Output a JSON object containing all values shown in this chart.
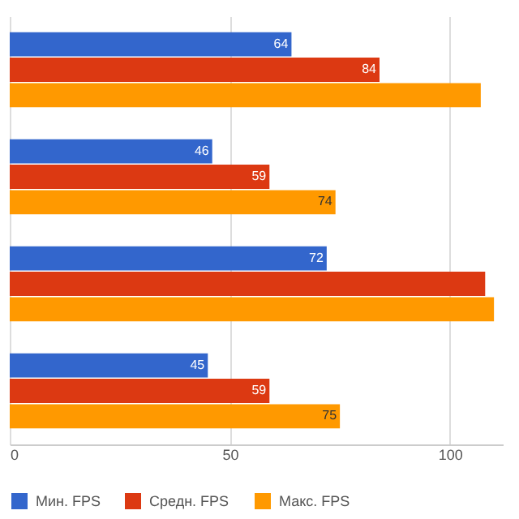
{
  "chart_data": {
    "type": "bar",
    "orientation": "horizontal",
    "categories": [
      null,
      null,
      null,
      null
    ],
    "series": [
      {
        "name": "Мин. FPS",
        "color": "#3366cc",
        "values": [
          64,
          46,
          72,
          45
        ],
        "value_labels": [
          "64",
          "46",
          "72",
          "45"
        ]
      },
      {
        "name": "Средн. FPS",
        "color": "#dc3912",
        "values": [
          84,
          59,
          108,
          59
        ],
        "value_labels": [
          "84",
          "59",
          null,
          "59"
        ]
      },
      {
        "name": "Макс. FPS",
        "color": "#ff9900",
        "values": [
          107,
          74,
          110,
          75
        ],
        "value_labels": [
          null,
          "74",
          null,
          "75"
        ]
      }
    ],
    "xlim": [
      0,
      112
    ],
    "xticks": [
      0,
      50,
      100
    ],
    "grid": "x",
    "legend": "bottom",
    "tick_labels": "x"
  }
}
